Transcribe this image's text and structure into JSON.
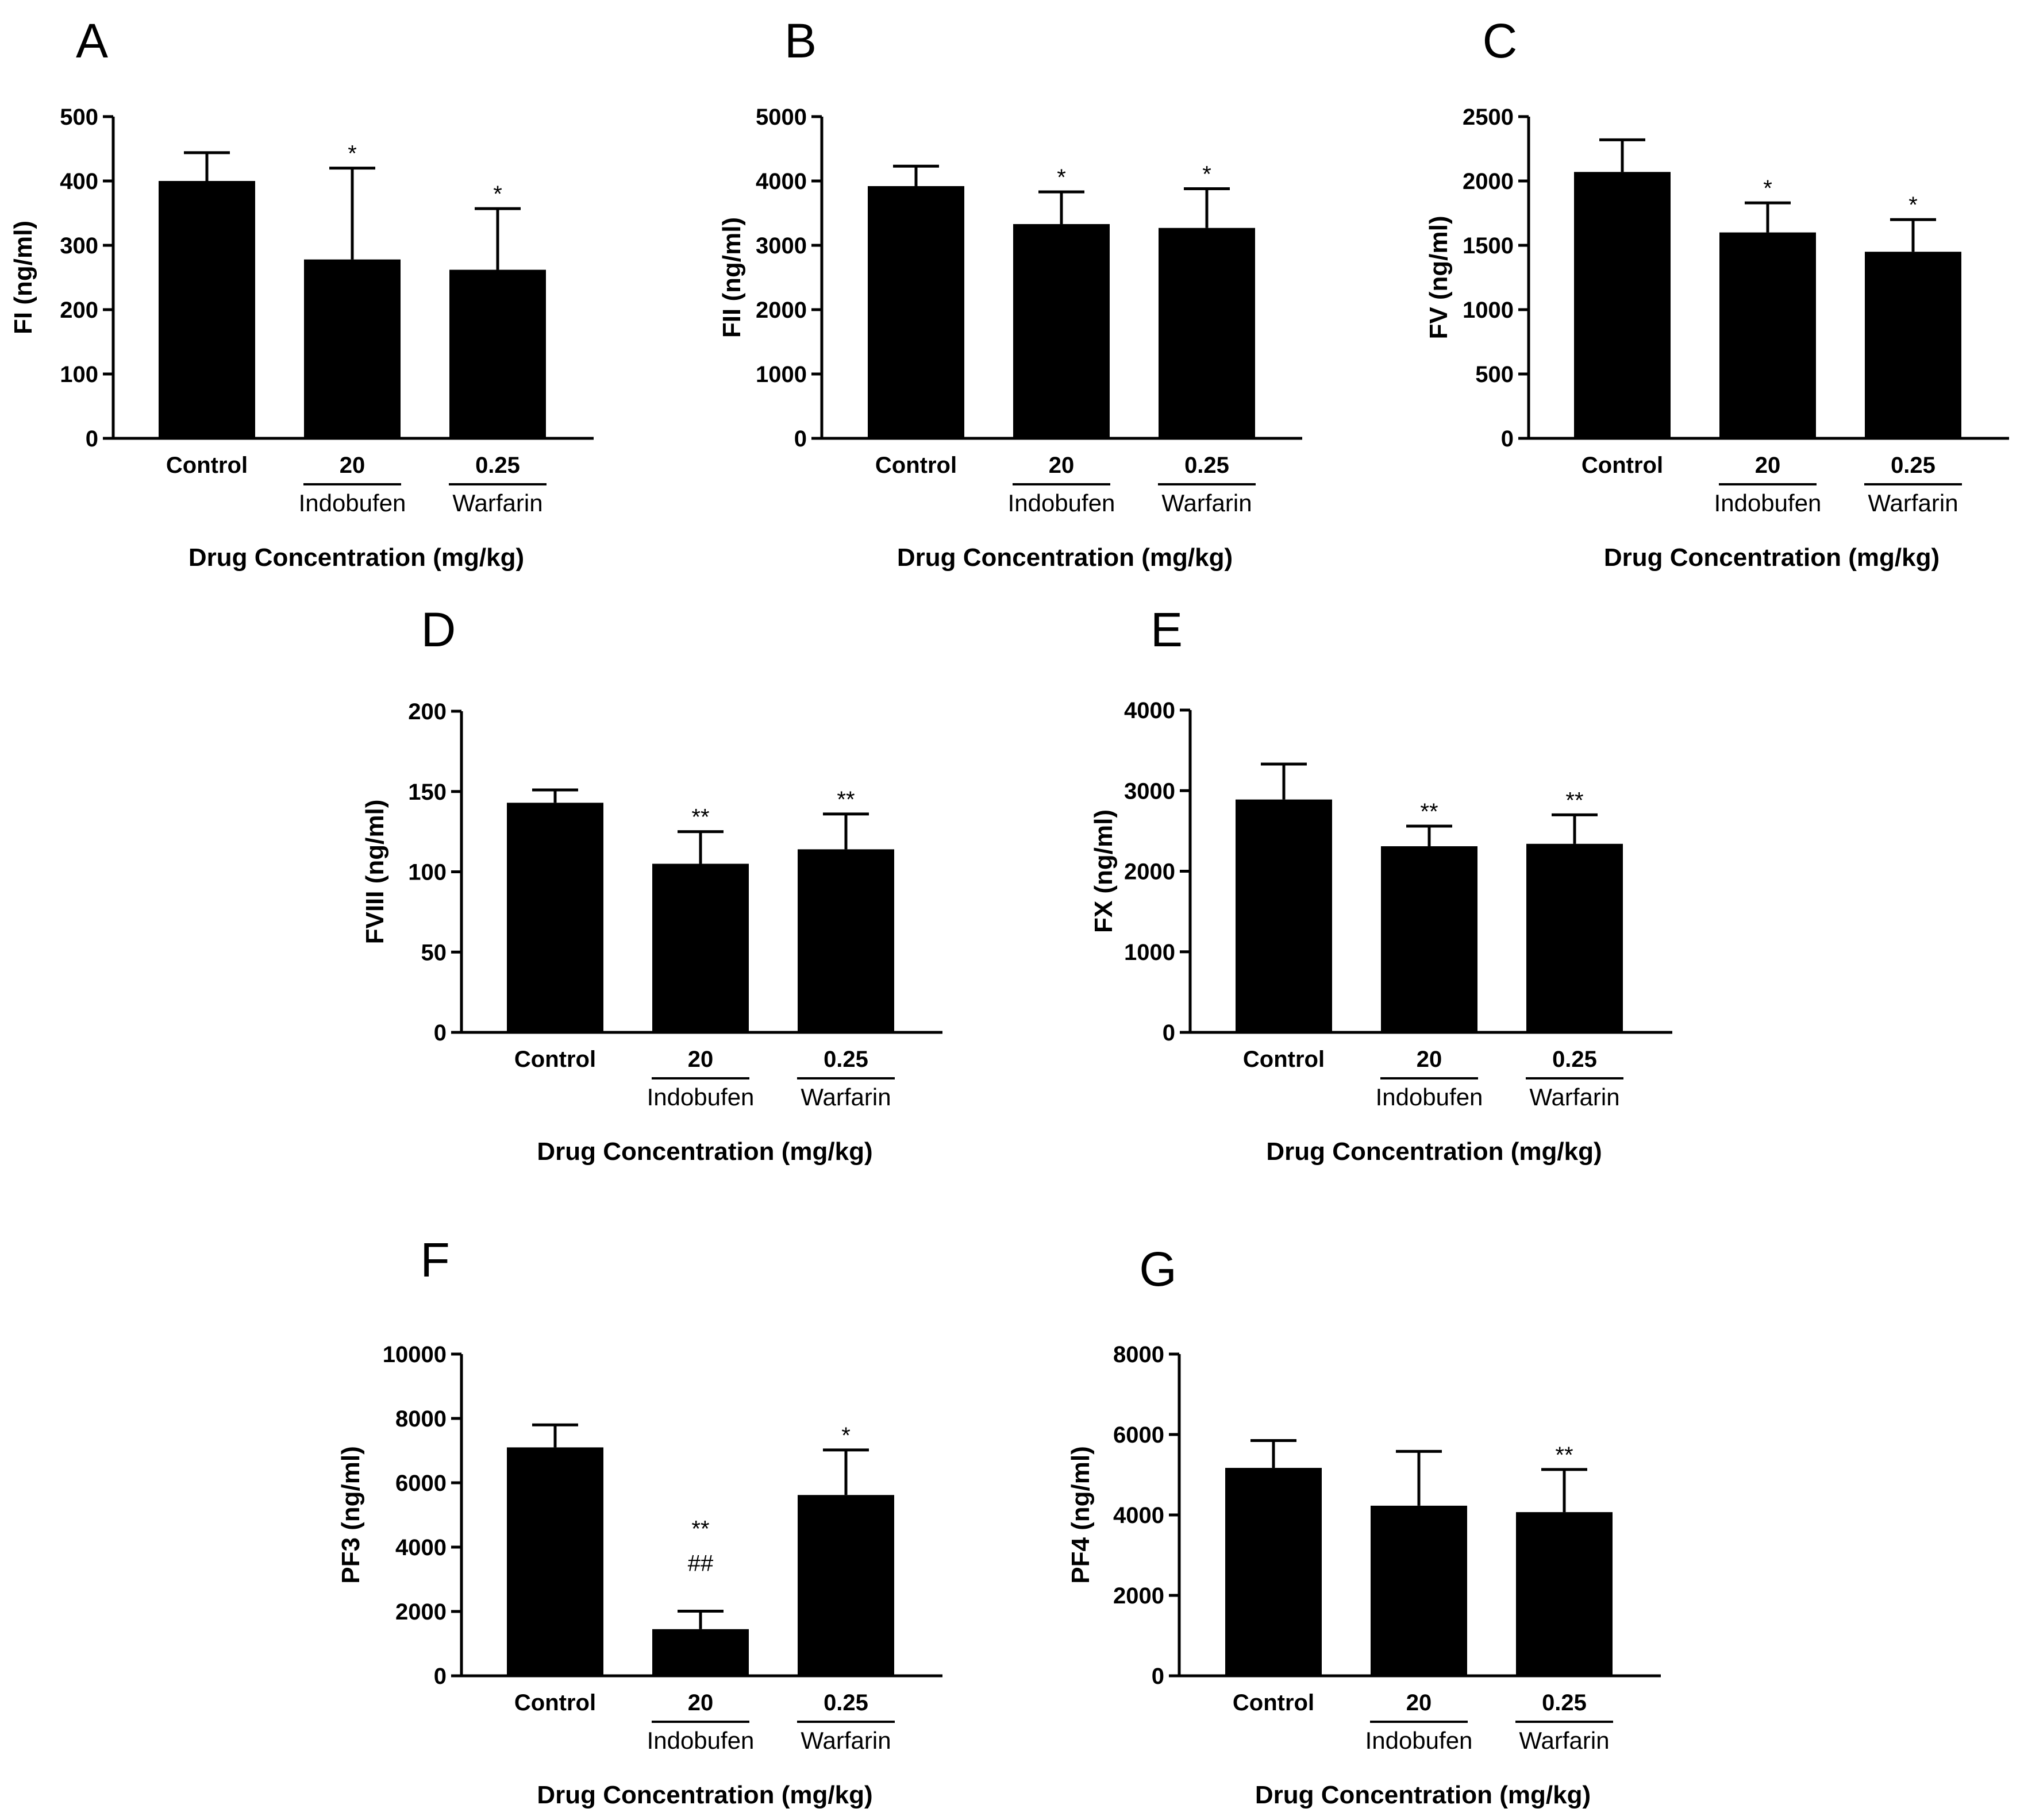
{
  "figure": {
    "common_xlabel": "Drug Concentration (mg/kg)"
  },
  "chart_data": [
    {
      "panel": "A",
      "type": "bar",
      "categories": [
        "Control",
        "20",
        "0.25"
      ],
      "group_labels": [
        "",
        "Indobufen",
        "Warfarin"
      ],
      "values": [
        400,
        278,
        262
      ],
      "errors": [
        44,
        142,
        95
      ],
      "significance": [
        "",
        "*",
        "*"
      ],
      "significance2": [
        "",
        "",
        ""
      ],
      "ylabel": "FI (ng/ml)",
      "xlabel": "Drug Concentration (mg/kg)",
      "ylim": [
        0,
        500
      ],
      "yticks": [
        0,
        100,
        200,
        300,
        400,
        500
      ],
      "ytick_labels": [
        "0",
        "100",
        "200",
        "300",
        "400",
        "500"
      ]
    },
    {
      "panel": "B",
      "type": "bar",
      "categories": [
        "Control",
        "20",
        "0.25"
      ],
      "group_labels": [
        "",
        "Indobufen",
        "Warfarin"
      ],
      "values": [
        3920,
        3330,
        3270
      ],
      "errors": [
        310,
        500,
        610
      ],
      "significance": [
        "",
        "*",
        "*"
      ],
      "significance2": [
        "",
        "",
        ""
      ],
      "ylabel": "FII (ng/ml)",
      "xlabel": "Drug Concentration (mg/kg)",
      "ylim": [
        0,
        5000
      ],
      "yticks": [
        0,
        1000,
        2000,
        3000,
        4000,
        5000
      ],
      "ytick_labels": [
        "0",
        "1000",
        "2000",
        "3000",
        "4000",
        "5000"
      ]
    },
    {
      "panel": "C",
      "type": "bar",
      "categories": [
        "Control",
        "20",
        "0.25"
      ],
      "group_labels": [
        "",
        "Indobufen",
        "Warfarin"
      ],
      "values": [
        2070,
        1600,
        1450
      ],
      "errors": [
        250,
        230,
        250
      ],
      "significance": [
        "",
        "*",
        "*"
      ],
      "significance2": [
        "",
        "",
        ""
      ],
      "ylabel": "FV (ng/ml)",
      "xlabel": "Drug Concentration (mg/kg)",
      "ylim": [
        0,
        2500
      ],
      "yticks": [
        0,
        500,
        1000,
        1500,
        2000,
        2500
      ],
      "ytick_labels": [
        "0",
        "500",
        "1000",
        "1500",
        "2000",
        "2500"
      ]
    },
    {
      "panel": "D",
      "type": "bar",
      "categories": [
        "Control",
        "20",
        "0.25"
      ],
      "group_labels": [
        "",
        "Indobufen",
        "Warfarin"
      ],
      "values": [
        143,
        105,
        114
      ],
      "errors": [
        8,
        20,
        22
      ],
      "significance": [
        "",
        "**",
        "**"
      ],
      "significance2": [
        "",
        "",
        ""
      ],
      "ylabel": "FVIII (ng/ml)",
      "xlabel": "Drug Concentration (mg/kg)",
      "ylim": [
        0,
        200
      ],
      "yticks": [
        0,
        50,
        100,
        150,
        200
      ],
      "ytick_labels": [
        "0",
        "50",
        "100",
        "150",
        "200"
      ]
    },
    {
      "panel": "E",
      "type": "bar",
      "categories": [
        "Control",
        "20",
        "0.25"
      ],
      "group_labels": [
        "",
        "Indobufen",
        "Warfarin"
      ],
      "values": [
        2890,
        2310,
        2340
      ],
      "errors": [
        440,
        250,
        360
      ],
      "significance": [
        "",
        "**",
        "**"
      ],
      "significance2": [
        "",
        "",
        ""
      ],
      "ylabel": "FX (ng/ml)",
      "xlabel": "Drug Concentration (mg/kg)",
      "ylim": [
        0,
        4000
      ],
      "yticks": [
        0,
        1000,
        2000,
        3000,
        4000
      ],
      "ytick_labels": [
        "0",
        "1000",
        "2000",
        "3000",
        "4000"
      ]
    },
    {
      "panel": "F",
      "type": "bar",
      "categories": [
        "Control",
        "20",
        "0.25"
      ],
      "group_labels": [
        "",
        "Indobufen",
        "Warfarin"
      ],
      "values": [
        7100,
        1450,
        5620
      ],
      "errors": [
        700,
        560,
        1400
      ],
      "significance": [
        "",
        "**",
        "*"
      ],
      "significance2": [
        "",
        "##",
        ""
      ],
      "ylabel": "PF3 (ng/ml)",
      "xlabel": "Drug Concentration (mg/kg)",
      "ylim": [
        0,
        10000
      ],
      "yticks": [
        0,
        2000,
        4000,
        6000,
        8000,
        10000
      ],
      "ytick_labels": [
        "0",
        "2000",
        "4000",
        "6000",
        "8000",
        "10000"
      ]
    },
    {
      "panel": "G",
      "type": "bar",
      "categories": [
        "Control",
        "20",
        "0.25"
      ],
      "group_labels": [
        "",
        "Indobufen",
        "Warfarin"
      ],
      "values": [
        5170,
        4230,
        4070
      ],
      "errors": [
        680,
        1350,
        1060
      ],
      "significance": [
        "",
        "",
        "**"
      ],
      "significance2": [
        "",
        "",
        ""
      ],
      "ylabel": "PF4 (ng/ml)",
      "xlabel": "Drug Concentration (mg/kg)",
      "ylim": [
        0,
        8000
      ],
      "yticks": [
        0,
        2000,
        4000,
        6000,
        8000
      ],
      "ytick_labels": [
        "0",
        "2000",
        "4000",
        "6000",
        "8000"
      ]
    }
  ]
}
